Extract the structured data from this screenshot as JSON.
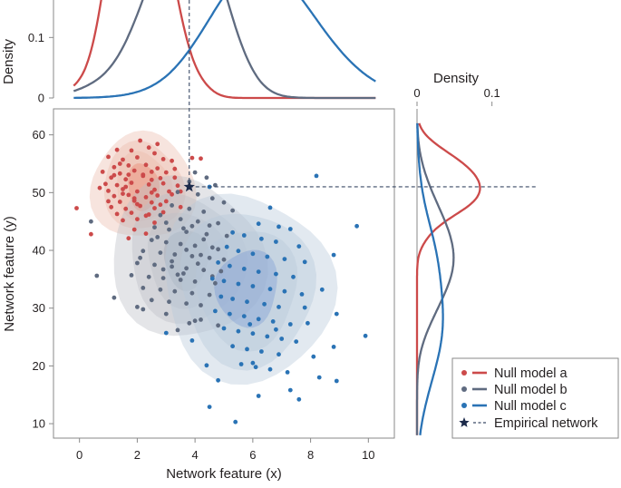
{
  "chart_data": {
    "type": "scatter",
    "xlabel": "Network feature (x)",
    "ylabel": "Network feature (y)",
    "xlim": [
      -0.9,
      10.9
    ],
    "ylim": [
      7.5,
      64.5
    ],
    "xticks": [
      0,
      2,
      4,
      6,
      8,
      10
    ],
    "yticks": [
      10,
      20,
      30,
      40,
      50,
      60
    ],
    "top_density": {
      "label": "Density",
      "ticks": [
        0,
        0.1
      ],
      "ylim": [
        0,
        0.15
      ]
    },
    "right_density": {
      "label": "Density",
      "ticks": [
        0,
        0.1
      ],
      "xlim": [
        0,
        0.15
      ]
    },
    "legend_position": "bottom-right",
    "series": [
      {
        "name": "Null model a",
        "color": "#cc4a4a",
        "center": [
          2.2,
          51
        ],
        "points": [
          [
            2.1,
            59
          ],
          [
            1.3,
            57.4
          ],
          [
            1.8,
            57.3
          ],
          [
            2.4,
            57.8
          ],
          [
            2.6,
            56.8
          ],
          [
            1.0,
            56.2
          ],
          [
            1.5,
            55.7
          ],
          [
            2.0,
            56.1
          ],
          [
            2.9,
            55.8
          ],
          [
            3.2,
            55.5
          ],
          [
            1.2,
            54.4
          ],
          [
            1.7,
            54.7
          ],
          [
            2.3,
            54.8
          ],
          [
            2.7,
            54.2
          ],
          [
            0.8,
            53.6
          ],
          [
            1.4,
            53.3
          ],
          [
            1.9,
            53.8
          ],
          [
            2.5,
            53.6
          ],
          [
            3.0,
            53.5
          ],
          [
            3.3,
            54.1
          ],
          [
            1.1,
            52.6
          ],
          [
            1.6,
            52.3
          ],
          [
            2.2,
            52.9
          ],
          [
            2.8,
            52.5
          ],
          [
            0.9,
            51.5
          ],
          [
            1.3,
            51.3
          ],
          [
            1.8,
            51.7
          ],
          [
            2.4,
            51.4
          ],
          [
            2.9,
            51.6
          ],
          [
            3.4,
            51.2
          ],
          [
            1.0,
            50.3
          ],
          [
            1.5,
            50.6
          ],
          [
            2.0,
            50.2
          ],
          [
            2.6,
            50.5
          ],
          [
            3.1,
            50.2
          ],
          [
            1.2,
            49.4
          ],
          [
            1.7,
            49.6
          ],
          [
            2.3,
            49.2
          ],
          [
            2.7,
            49.5
          ],
          [
            3.2,
            49.7
          ],
          [
            1.4,
            48.4
          ],
          [
            1.9,
            48.6
          ],
          [
            2.5,
            48.3
          ],
          [
            3.0,
            48.5
          ],
          [
            1.1,
            47.5
          ],
          [
            1.6,
            47.2
          ],
          [
            2.1,
            47.7
          ],
          [
            2.6,
            47.3
          ],
          [
            3.5,
            47.5
          ],
          [
            1.3,
            46.3
          ],
          [
            1.8,
            46.5
          ],
          [
            2.4,
            46.2
          ],
          [
            2.9,
            46.6
          ],
          [
            1.5,
            45.2
          ],
          [
            2.0,
            45.4
          ],
          [
            2.6,
            44.8
          ],
          [
            1.9,
            43.6
          ],
          [
            2.3,
            42.9
          ],
          [
            1.7,
            42.1
          ],
          [
            3.9,
            56
          ],
          [
            4.2,
            55.9
          ],
          [
            -0.1,
            47.3
          ],
          [
            0.4,
            42.8
          ],
          [
            3.5,
            50.2
          ],
          [
            0.7,
            50.8
          ],
          [
            2.2,
            53.1
          ],
          [
            1.6,
            51.0
          ],
          [
            2.5,
            50.0
          ],
          [
            1.9,
            49.0
          ],
          [
            2.8,
            47.9
          ],
          [
            1.2,
            53.0
          ],
          [
            2.0,
            48.0
          ],
          [
            2.3,
            46.0
          ],
          [
            1.4,
            55.0
          ],
          [
            2.7,
            58.4
          ],
          [
            1.5,
            49.8
          ],
          [
            1.0,
            48.5
          ],
          [
            2.5,
            52.2
          ],
          [
            3.3,
            52.6
          ],
          [
            1.7,
            53.1
          ]
        ]
      },
      {
        "name": "Null model b",
        "color": "#5f6b80",
        "center": [
          3.7,
          38.5
        ],
        "points": [
          [
            4.0,
            53.5
          ],
          [
            4.4,
            52.6
          ],
          [
            3.8,
            51.9
          ],
          [
            4.7,
            51.3
          ],
          [
            3.4,
            50.1
          ],
          [
            4.1,
            49.7
          ],
          [
            4.6,
            49.0
          ],
          [
            5.0,
            48.3
          ],
          [
            3.2,
            47.8
          ],
          [
            3.8,
            47.2
          ],
          [
            4.3,
            46.7
          ],
          [
            2.8,
            46.1
          ],
          [
            3.5,
            45.4
          ],
          [
            4.1,
            45.0
          ],
          [
            4.8,
            44.7
          ],
          [
            2.6,
            44.0
          ],
          [
            3.1,
            43.6
          ],
          [
            3.7,
            43.2
          ],
          [
            4.4,
            42.8
          ],
          [
            5.1,
            42.5
          ],
          [
            2.5,
            41.8
          ],
          [
            3.0,
            41.4
          ],
          [
            3.5,
            41.1
          ],
          [
            4.0,
            40.8
          ],
          [
            4.6,
            40.5
          ],
          [
            2.2,
            39.9
          ],
          [
            2.8,
            39.6
          ],
          [
            3.3,
            39.3
          ],
          [
            3.9,
            39.0
          ],
          [
            4.5,
            38.7
          ],
          [
            5.0,
            38.4
          ],
          [
            2.0,
            37.8
          ],
          [
            2.6,
            37.5
          ],
          [
            3.2,
            37.2
          ],
          [
            3.7,
            36.9
          ],
          [
            4.3,
            36.6
          ],
          [
            4.9,
            36.4
          ],
          [
            1.8,
            35.7
          ],
          [
            2.4,
            35.4
          ],
          [
            2.9,
            35.2
          ],
          [
            3.5,
            34.9
          ],
          [
            4.0,
            34.6
          ],
          [
            4.7,
            34.3
          ],
          [
            2.2,
            33.5
          ],
          [
            2.8,
            33.2
          ],
          [
            3.3,
            32.9
          ],
          [
            3.9,
            32.6
          ],
          [
            4.5,
            32.3
          ],
          [
            2.5,
            31.4
          ],
          [
            3.1,
            31.1
          ],
          [
            3.7,
            30.8
          ],
          [
            4.2,
            30.5
          ],
          [
            1.2,
            31.8
          ],
          [
            0.6,
            35.6
          ],
          [
            0.4,
            45.0
          ],
          [
            2.0,
            30.2
          ],
          [
            2.2,
            29.8
          ],
          [
            3.0,
            29.0
          ],
          [
            3.4,
            26.2
          ],
          [
            3.8,
            27.4
          ],
          [
            4.2,
            28.0
          ],
          [
            4.0,
            27.8
          ],
          [
            4.8,
            27.0
          ],
          [
            3.6,
            43.8
          ],
          [
            4.3,
            41.9
          ],
          [
            3.2,
            38.1
          ],
          [
            3.6,
            36.0
          ],
          [
            4.2,
            39.2
          ],
          [
            2.7,
            42.3
          ],
          [
            3.9,
            44.2
          ],
          [
            4.5,
            44.3
          ],
          [
            5.3,
            46.9
          ],
          [
            2.1,
            38.7
          ],
          [
            3.4,
            35.8
          ],
          [
            4.8,
            40.2
          ],
          [
            3.0,
            44.8
          ],
          [
            4.1,
            37.7
          ],
          [
            4.6,
            35.5
          ],
          [
            2.9,
            36.7
          ],
          [
            3.7,
            40.1
          ]
        ]
      },
      {
        "name": "Null model c",
        "color": "#2a73b5",
        "center": [
          5.8,
          33.5
        ],
        "points": [
          [
            8.2,
            52.9
          ],
          [
            4.5,
            51.0
          ],
          [
            6.6,
            47.4
          ],
          [
            6.2,
            44.6
          ],
          [
            6.9,
            44.1
          ],
          [
            7.3,
            43.7
          ],
          [
            9.6,
            44.2
          ],
          [
            5.3,
            43.1
          ],
          [
            5.7,
            42.6
          ],
          [
            6.3,
            42.0
          ],
          [
            6.8,
            41.5
          ],
          [
            7.6,
            40.7
          ],
          [
            5.1,
            40.6
          ],
          [
            5.5,
            39.9
          ],
          [
            6.0,
            39.4
          ],
          [
            6.5,
            38.9
          ],
          [
            7.1,
            38.5
          ],
          [
            7.8,
            38.0
          ],
          [
            4.8,
            37.9
          ],
          [
            5.2,
            37.3
          ],
          [
            5.7,
            36.8
          ],
          [
            6.2,
            36.3
          ],
          [
            6.8,
            35.9
          ],
          [
            7.4,
            35.4
          ],
          [
            4.6,
            35.1
          ],
          [
            5.0,
            34.7
          ],
          [
            5.5,
            34.2
          ],
          [
            6.0,
            33.8
          ],
          [
            6.6,
            33.3
          ],
          [
            7.1,
            32.9
          ],
          [
            7.7,
            32.4
          ],
          [
            4.9,
            32.0
          ],
          [
            5.3,
            31.6
          ],
          [
            5.8,
            31.1
          ],
          [
            6.4,
            30.7
          ],
          [
            6.9,
            30.2
          ],
          [
            4.7,
            29.5
          ],
          [
            5.2,
            29.0
          ],
          [
            5.7,
            28.6
          ],
          [
            6.2,
            28.1
          ],
          [
            6.7,
            27.7
          ],
          [
            7.3,
            27.2
          ],
          [
            5.0,
            26.5
          ],
          [
            5.5,
            26.0
          ],
          [
            6.0,
            25.6
          ],
          [
            6.5,
            25.1
          ],
          [
            7.0,
            24.7
          ],
          [
            7.5,
            24.2
          ],
          [
            5.3,
            23.4
          ],
          [
            5.8,
            22.9
          ],
          [
            6.3,
            22.5
          ],
          [
            6.9,
            22.0
          ],
          [
            5.6,
            20.3
          ],
          [
            6.1,
            19.8
          ],
          [
            6.6,
            19.4
          ],
          [
            7.2,
            18.9
          ],
          [
            4.8,
            17.5
          ],
          [
            8.1,
            21.6
          ],
          [
            8.8,
            23.3
          ],
          [
            8.3,
            18.0
          ],
          [
            8.9,
            17.4
          ],
          [
            7.6,
            14.2
          ],
          [
            6.2,
            14.8
          ],
          [
            4.5,
            12.9
          ],
          [
            5.4,
            10.3
          ],
          [
            9.9,
            25.2
          ],
          [
            8.9,
            29.0
          ],
          [
            8.8,
            39.2
          ],
          [
            8.4,
            33.2
          ],
          [
            3.9,
            24.4
          ],
          [
            3.0,
            25.7
          ],
          [
            7.9,
            27.4
          ],
          [
            7.8,
            30.1
          ],
          [
            6.0,
            20.5
          ],
          [
            6.8,
            26.3
          ],
          [
            5.9,
            27.2
          ],
          [
            4.4,
            20.1
          ],
          [
            7.3,
            15.8
          ]
        ]
      }
    ],
    "empirical_network": {
      "name": "Empirical network",
      "x": 3.8,
      "y": 51,
      "color": "#1c2a4a"
    }
  }
}
